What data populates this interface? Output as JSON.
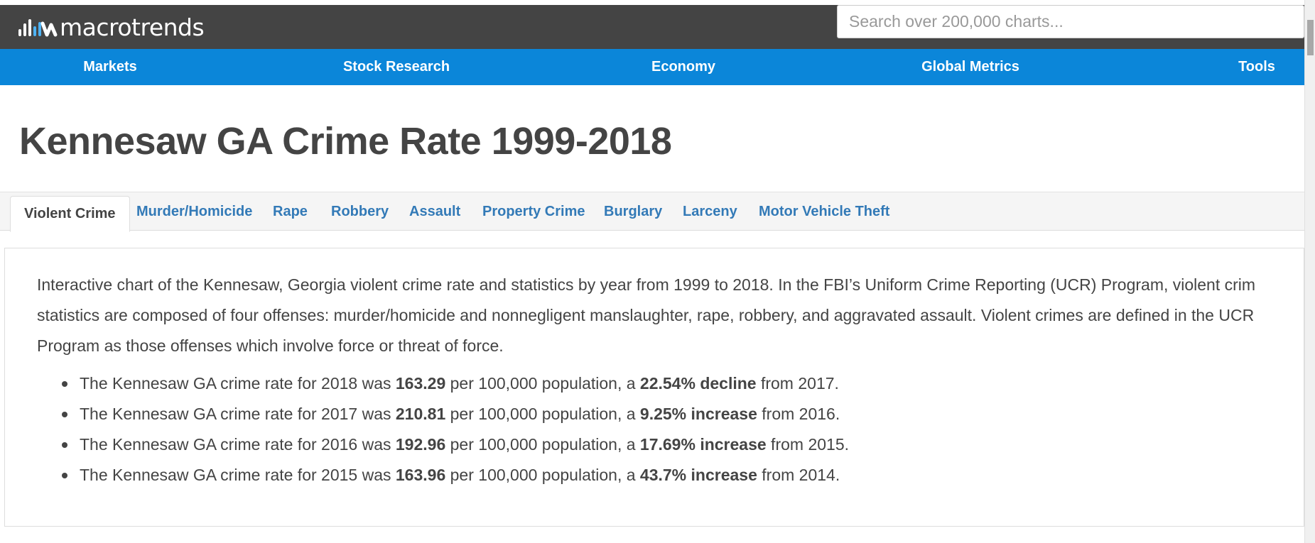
{
  "header": {
    "logo_text": "macrotrends",
    "logo_icon": "macrotrends-logo-icon",
    "search_placeholder": "Search over 200,000 charts..."
  },
  "nav": {
    "items": [
      {
        "label": "Markets"
      },
      {
        "label": "Stock Research"
      },
      {
        "label": "Economy"
      },
      {
        "label": "Global Metrics"
      },
      {
        "label": "Tools"
      }
    ]
  },
  "page": {
    "title": "Kennesaw GA Crime Rate 1999-2018"
  },
  "tabs": {
    "items": [
      {
        "label": "Violent Crime",
        "active": true
      },
      {
        "label": "Murder/Homicide"
      },
      {
        "label": "Rape"
      },
      {
        "label": "Robbery"
      },
      {
        "label": "Assault"
      },
      {
        "label": "Property Crime"
      },
      {
        "label": "Burglary"
      },
      {
        "label": "Larceny"
      },
      {
        "label": "Motor Vehicle Theft"
      }
    ]
  },
  "content": {
    "intro_lines": [
      "Interactive chart of the Kennesaw, Georgia violent crime rate and statistics by year from 1999 to 2018. In the FBI’s Uniform Crime Reporting (UCR) Program, violent crim",
      "statistics are composed of four offenses: murder/homicide and nonnegligent manslaughter, rape, robbery, and aggravated assault. Violent crimes are defined in the UCR",
      "Program as those offenses which involve force or threat of force."
    ],
    "stats": [
      {
        "prefix": "The Kennesaw GA crime rate for 2018 was ",
        "rate": "163.29",
        "middle": " per 100,000 population, a ",
        "change": "22.54% decline",
        "suffix": " from 2017."
      },
      {
        "prefix": "The Kennesaw GA crime rate for 2017 was ",
        "rate": "210.81",
        "middle": " per 100,000 population, a ",
        "change": "9.25% increase",
        "suffix": " from 2016."
      },
      {
        "prefix": "The Kennesaw GA crime rate for 2016 was ",
        "rate": "192.96",
        "middle": " per 100,000 population, a ",
        "change": "17.69% increase",
        "suffix": " from 2015."
      },
      {
        "prefix": "The Kennesaw GA crime rate for 2015 was ",
        "rate": "163.96",
        "middle": " per 100,000 population, a ",
        "change": "43.7% increase",
        "suffix": " from 2014."
      }
    ]
  },
  "colors": {
    "topbar": "#444444",
    "navbar": "#0b86d9",
    "tab_link": "#337ab7",
    "text": "#444444"
  }
}
